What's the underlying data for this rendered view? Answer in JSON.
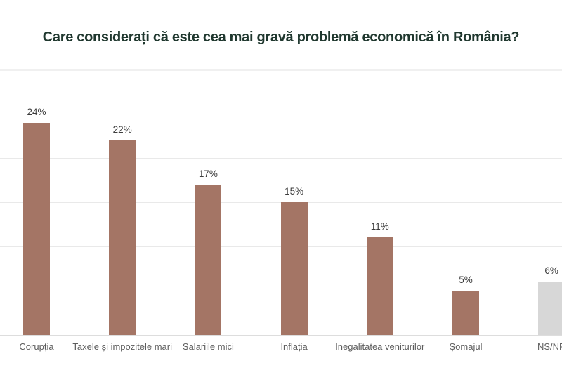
{
  "title": "Care considerați că este cea mai gravă problemă economică în România?",
  "colors": {
    "title": "#20382f",
    "bar_default": "#a47565",
    "bar_muted": "#d7d7d7",
    "value_label": "#3d3d3d",
    "category_label": "#5d5d5d",
    "gridline": "#e9e9e9",
    "gridline_top": "#f0f0f0",
    "baseline": "#dddddd",
    "background": "#ffffff"
  },
  "chart_data": {
    "type": "bar",
    "title": "Care considerați că este cea mai gravă problemă economică în România?",
    "categories": [
      "Corupția",
      "Taxele și impozitele mari",
      "Salariile mici",
      "Inflația",
      "Inegalitatea veniturilor",
      "Șomajul",
      "NS/NR"
    ],
    "values": [
      24,
      22,
      17,
      15,
      11,
      5,
      6
    ],
    "value_labels": [
      "24%",
      "22%",
      "17%",
      "15%",
      "11%",
      "5%",
      "6%"
    ],
    "bar_colors": [
      "#a47565",
      "#a47565",
      "#a47565",
      "#a47565",
      "#a47565",
      "#a47565",
      "#d7d7d7"
    ],
    "xlabel": "",
    "ylabel": "",
    "ylim": [
      0,
      30
    ],
    "grid": "horizontal",
    "gridline_step_percent": 5,
    "legend": "none",
    "notes": "last column (NS/NR) is partially cut off at the right edge"
  }
}
